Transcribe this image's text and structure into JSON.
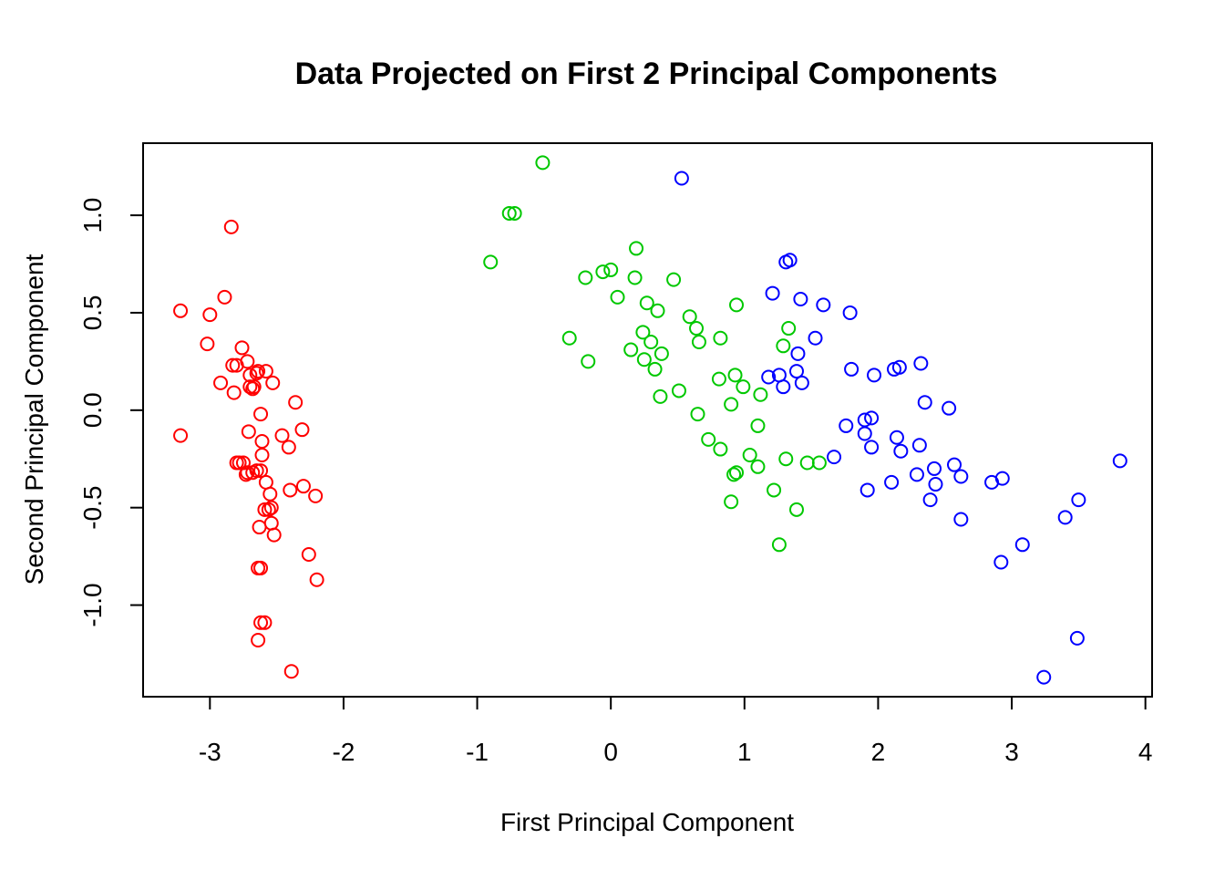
{
  "chart_data": {
    "type": "scatter",
    "title": "Data Projected on First 2  Principal Components",
    "xlabel": "First Principal Component",
    "ylabel": "Second Principal Component",
    "xlim": [
      -3.5,
      4.05
    ],
    "ylim": [
      -1.47,
      1.37
    ],
    "x_ticks": [
      -3,
      -2,
      -1,
      0,
      1,
      2,
      3,
      4
    ],
    "y_ticks": [
      -1.0,
      -0.5,
      0.0,
      0.5,
      1.0
    ],
    "x_tick_labels": [
      "-3",
      "-2",
      "-1",
      "0",
      "1",
      "2",
      "3",
      "4"
    ],
    "y_tick_labels": [
      "-1.0",
      "-0.5",
      "0.0",
      "0.5",
      "1.0"
    ],
    "grid": false,
    "marker": "open-circle",
    "series": [
      {
        "color": "#ff0000",
        "x": [
          -3.22,
          -3.22,
          -3.0,
          -3.02,
          -2.89,
          -2.92,
          -2.84,
          -2.83,
          -2.82,
          -2.8,
          -2.76,
          -2.72,
          -2.7,
          -2.75,
          -2.73,
          -2.71,
          -2.7,
          -2.68,
          -2.67,
          -2.65,
          -2.64,
          -2.62,
          -2.61,
          -2.58,
          -2.62,
          -2.61,
          -2.58,
          -2.55,
          -2.53,
          -2.46,
          -2.41,
          -2.36,
          -2.31,
          -2.8,
          -2.78,
          -2.72,
          -2.68,
          -2.65,
          -2.63,
          -2.56,
          -2.54,
          -2.59,
          -2.54,
          -2.4,
          -2.3,
          -2.21,
          -2.62,
          -2.52,
          -2.26,
          -2.64,
          -2.62,
          -2.2,
          -2.59,
          -2.64,
          -2.39
        ],
        "y": [
          0.51,
          -0.13,
          0.49,
          0.34,
          0.58,
          0.14,
          0.94,
          0.23,
          0.09,
          0.23,
          0.32,
          0.25,
          0.18,
          -0.27,
          -0.33,
          -0.11,
          0.12,
          0.11,
          0.12,
          0.19,
          0.2,
          -0.02,
          -0.16,
          0.2,
          -0.31,
          -0.23,
          -0.37,
          -0.43,
          0.14,
          -0.13,
          -0.19,
          0.04,
          -0.1,
          -0.27,
          -0.27,
          -0.32,
          -0.32,
          -0.31,
          -0.6,
          -0.51,
          -0.5,
          -0.51,
          -0.58,
          -0.41,
          -0.39,
          -0.44,
          -0.81,
          -0.64,
          -0.74,
          -0.81,
          -1.09,
          -0.87,
          -1.09,
          -1.18,
          -1.34
        ]
      },
      {
        "color": "#00c800",
        "x": [
          -0.51,
          -0.76,
          -0.72,
          -0.9,
          -0.31,
          -0.19,
          -0.17,
          -0.06,
          0.0,
          0.05,
          0.15,
          0.18,
          0.19,
          0.24,
          0.25,
          0.27,
          0.3,
          0.33,
          0.35,
          0.37,
          0.38,
          0.47,
          0.51,
          0.59,
          0.64,
          0.66,
          0.65,
          0.73,
          0.82,
          0.81,
          0.82,
          0.94,
          0.9,
          0.93,
          0.99,
          1.04,
          1.1,
          1.1,
          1.12,
          0.92,
          0.94,
          0.9,
          1.22,
          1.26,
          1.29,
          1.31,
          1.33,
          1.39,
          1.47,
          1.56
        ],
        "y": [
          1.27,
          1.01,
          1.01,
          0.76,
          0.37,
          0.68,
          0.25,
          0.71,
          0.72,
          0.58,
          0.31,
          0.68,
          0.83,
          0.4,
          0.26,
          0.55,
          0.35,
          0.21,
          0.51,
          0.07,
          0.29,
          0.67,
          0.1,
          0.48,
          0.42,
          0.35,
          -0.02,
          -0.15,
          0.37,
          0.16,
          -0.2,
          0.54,
          0.03,
          0.18,
          0.12,
          -0.23,
          -0.08,
          -0.29,
          0.08,
          -0.33,
          -0.32,
          -0.47,
          -0.41,
          -0.69,
          0.33,
          -0.25,
          0.42,
          -0.51,
          -0.27,
          -0.27
        ]
      },
      {
        "color": "#0000ff",
        "x": [
          0.53,
          1.31,
          1.34,
          1.21,
          1.42,
          1.59,
          1.79,
          1.53,
          1.4,
          1.26,
          1.18,
          1.29,
          1.39,
          1.43,
          1.8,
          1.97,
          2.12,
          2.16,
          2.32,
          2.35,
          2.53,
          1.76,
          1.9,
          1.95,
          1.9,
          1.95,
          1.67,
          2.14,
          2.17,
          2.31,
          1.92,
          2.1,
          2.29,
          2.42,
          2.43,
          2.39,
          2.57,
          2.62,
          2.62,
          2.85,
          2.93,
          2.92,
          3.08,
          3.4,
          3.5,
          3.81,
          3.49,
          3.24
        ],
        "y": [
          1.19,
          0.76,
          0.77,
          0.6,
          0.57,
          0.54,
          0.5,
          0.37,
          0.29,
          0.18,
          0.17,
          0.12,
          0.2,
          0.14,
          0.21,
          0.18,
          0.21,
          0.22,
          0.24,
          0.04,
          0.01,
          -0.08,
          -0.05,
          -0.04,
          -0.12,
          -0.19,
          -0.24,
          -0.14,
          -0.21,
          -0.18,
          -0.41,
          -0.37,
          -0.33,
          -0.3,
          -0.38,
          -0.46,
          -0.28,
          -0.34,
          -0.56,
          -0.37,
          -0.35,
          -0.78,
          -0.69,
          -0.55,
          -0.46,
          -0.26,
          -1.17,
          -1.37
        ]
      }
    ]
  }
}
